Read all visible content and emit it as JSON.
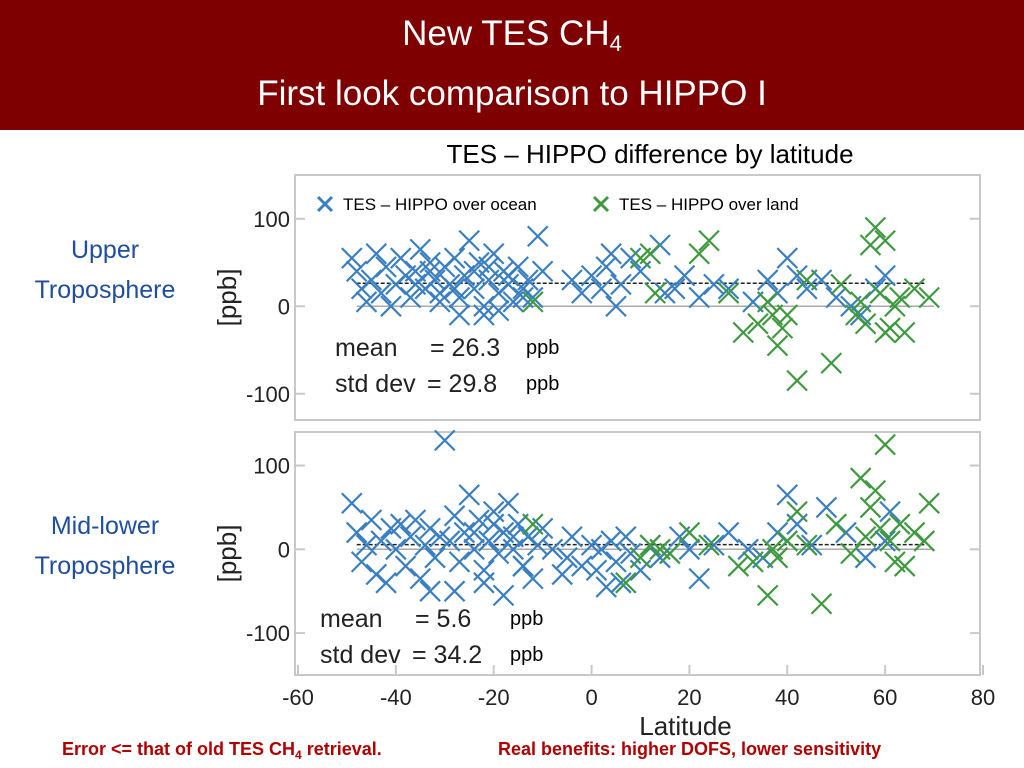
{
  "header": {
    "line1_prefix": "New TES CH",
    "line1_sub": "4",
    "line2": "First look comparison to HIPPO I"
  },
  "subtitle": "TES – HIPPO difference by latitude",
  "side_labels": {
    "upper_1": "Upper",
    "upper_2": "Troposphere",
    "lower_1": "Mid-lower",
    "lower_2": "Troposphere"
  },
  "footer": {
    "left_prefix": "Error <= that of old TES CH",
    "left_sub": "4",
    "left_suffix": " retrieval.",
    "right": "Real benefits: higher DOFS, lower sensitivity"
  },
  "colors": {
    "header_bg": "#7f0000",
    "ocean": "#3a7fc1",
    "land": "#3f9a3f",
    "side_label": "#1f4e9e",
    "footer_text": "#b00000"
  },
  "chart_data": [
    {
      "type": "scatter",
      "name": "upper",
      "ylabel": "[ppb]",
      "xlim": [
        -60,
        80
      ],
      "ylim": [
        -130,
        150
      ],
      "yticks": [
        100,
        0,
        -100
      ],
      "legend": "top",
      "legend_entries": [
        "TES – HIPPO over ocean",
        "TES – HIPPO over land"
      ],
      "mean_label": "mean",
      "mean_value": "= 26.3",
      "mean_unit": "ppb",
      "std_label": "std dev",
      "std_value": "= 29.8",
      "std_unit": "ppb",
      "mean_line": 26.3,
      "series": [
        {
          "key": "ocean",
          "points": [
            [
              -49,
              55
            ],
            [
              -48,
              40
            ],
            [
              -47,
              20
            ],
            [
              -46,
              5
            ],
            [
              -45,
              30
            ],
            [
              -44,
              60
            ],
            [
              -43,
              15
            ],
            [
              -42,
              45
            ],
            [
              -41,
              0
            ],
            [
              -40,
              25
            ],
            [
              -39,
              55
            ],
            [
              -38,
              35
            ],
            [
              -37,
              10
            ],
            [
              -36,
              40
            ],
            [
              -35,
              65
            ],
            [
              -34,
              20
            ],
            [
              -33,
              50
            ],
            [
              -32,
              30
            ],
            [
              -31,
              5
            ],
            [
              -30,
              45
            ],
            [
              -29,
              25
            ],
            [
              -28,
              55
            ],
            [
              -27,
              10
            ],
            [
              -26,
              35
            ],
            [
              -25,
              75
            ],
            [
              -24,
              20
            ],
            [
              -23,
              50
            ],
            [
              -22,
              0
            ],
            [
              -21,
              30
            ],
            [
              -20,
              60
            ],
            [
              -19,
              15
            ],
            [
              -18,
              40
            ],
            [
              -17,
              25
            ],
            [
              -16,
              5
            ],
            [
              -15,
              45
            ],
            [
              -14,
              20
            ],
            [
              -13,
              30
            ],
            [
              -12,
              10
            ],
            [
              -11,
              80
            ],
            [
              -10,
              40
            ],
            [
              -27,
              -10
            ],
            [
              -22,
              -10
            ],
            [
              -19,
              -5
            ],
            [
              -31,
              15
            ],
            [
              -36,
              25
            ],
            [
              -33,
              40
            ],
            [
              -28,
              20
            ],
            [
              -24,
              40
            ],
            [
              -21,
              45
            ],
            [
              -17,
              35
            ],
            [
              -14,
              10
            ],
            [
              -4,
              30
            ],
            [
              -2,
              15
            ],
            [
              0,
              35
            ],
            [
              2,
              20
            ],
            [
              3,
              45
            ],
            [
              4,
              60
            ],
            [
              5,
              0
            ],
            [
              6,
              25
            ],
            [
              8,
              55
            ],
            [
              10,
              40
            ],
            [
              14,
              70
            ],
            [
              15,
              15
            ],
            [
              17,
              20
            ],
            [
              19,
              35
            ],
            [
              22,
              10
            ],
            [
              25,
              25
            ],
            [
              28,
              20
            ],
            [
              33,
              5
            ],
            [
              36,
              30
            ],
            [
              38,
              15
            ],
            [
              40,
              55
            ],
            [
              42,
              35
            ],
            [
              44,
              20
            ],
            [
              47,
              30
            ],
            [
              50,
              10
            ],
            [
              53,
              0
            ],
            [
              55,
              -10
            ],
            [
              58,
              20
            ],
            [
              60,
              35
            ]
          ]
        },
        {
          "key": "land",
          "points": [
            [
              -12,
              5
            ],
            [
              10,
              55
            ],
            [
              12,
              60
            ],
            [
              13,
              15
            ],
            [
              22,
              60
            ],
            [
              24,
              75
            ],
            [
              28,
              15
            ],
            [
              31,
              -30
            ],
            [
              34,
              -20
            ],
            [
              36,
              5
            ],
            [
              37,
              -10
            ],
            [
              38,
              -45
            ],
            [
              39,
              -25
            ],
            [
              40,
              -10
            ],
            [
              42,
              -85
            ],
            [
              44,
              30
            ],
            [
              49,
              -65
            ],
            [
              51,
              25
            ],
            [
              54,
              -10
            ],
            [
              56,
              -20
            ],
            [
              57,
              70
            ],
            [
              58,
              90
            ],
            [
              59,
              15
            ],
            [
              60,
              75
            ],
            [
              61,
              -25
            ],
            [
              62,
              0
            ],
            [
              63,
              10
            ],
            [
              64,
              -30
            ],
            [
              66,
              20
            ],
            [
              69,
              10
            ],
            [
              55,
              5
            ],
            [
              60,
              -30
            ]
          ]
        }
      ]
    },
    {
      "type": "scatter",
      "name": "mid-lower",
      "ylabel": "[ppb]",
      "xlabel": "Latitude",
      "xlim": [
        -60,
        80
      ],
      "ylim": [
        -150,
        140
      ],
      "yticks": [
        100,
        0,
        -100
      ],
      "xticks": [
        -60,
        -40,
        -20,
        0,
        20,
        40,
        60,
        80
      ],
      "mean_label": "mean",
      "mean_value": "= 5.6",
      "mean_unit": "ppb",
      "std_label": "std dev",
      "std_value": "= 34.2",
      "std_unit": "ppb",
      "mean_line": 5.6,
      "series": [
        {
          "key": "ocean",
          "points": [
            [
              -49,
              55
            ],
            [
              -48,
              20
            ],
            [
              -47,
              -15
            ],
            [
              -46,
              5
            ],
            [
              -45,
              35
            ],
            [
              -44,
              -30
            ],
            [
              -43,
              10
            ],
            [
              -42,
              -40
            ],
            [
              -41,
              25
            ],
            [
              -40,
              0
            ],
            [
              -39,
              30
            ],
            [
              -38,
              -20
            ],
            [
              -37,
              15
            ],
            [
              -36,
              35
            ],
            [
              -35,
              -35
            ],
            [
              -34,
              5
            ],
            [
              -33,
              25
            ],
            [
              -32,
              -10
            ],
            [
              -31,
              15
            ],
            [
              -30,
              130
            ],
            [
              -29,
              10
            ],
            [
              -28,
              40
            ],
            [
              -27,
              -15
            ],
            [
              -26,
              20
            ],
            [
              -25,
              65
            ],
            [
              -24,
              0
            ],
            [
              -23,
              35
            ],
            [
              -22,
              -25
            ],
            [
              -21,
              10
            ],
            [
              -20,
              45
            ],
            [
              -19,
              -5
            ],
            [
              -18,
              20
            ],
            [
              -17,
              55
            ],
            [
              -16,
              0
            ],
            [
              -15,
              30
            ],
            [
              -14,
              -20
            ],
            [
              -13,
              15
            ],
            [
              -12,
              -35
            ],
            [
              -11,
              5
            ],
            [
              -10,
              25
            ],
            [
              -33,
              -50
            ],
            [
              -28,
              -50
            ],
            [
              -22,
              -40
            ],
            [
              -18,
              -55
            ],
            [
              -14,
              -20
            ],
            [
              -24,
              20
            ],
            [
              -20,
              30
            ],
            [
              -16,
              15
            ],
            [
              -8,
              0
            ],
            [
              -6,
              -30
            ],
            [
              -5,
              -10
            ],
            [
              -4,
              15
            ],
            [
              -2,
              -20
            ],
            [
              0,
              5
            ],
            [
              1,
              -25
            ],
            [
              2,
              0
            ],
            [
              3,
              -45
            ],
            [
              4,
              10
            ],
            [
              5,
              -15
            ],
            [
              6,
              -40
            ],
            [
              7,
              15
            ],
            [
              8,
              -5
            ],
            [
              10,
              -25
            ],
            [
              12,
              5
            ],
            [
              14,
              -10
            ],
            [
              16,
              -5
            ],
            [
              18,
              15
            ],
            [
              20,
              0
            ],
            [
              22,
              -35
            ],
            [
              25,
              5
            ],
            [
              28,
              20
            ],
            [
              32,
              0
            ],
            [
              35,
              -10
            ],
            [
              38,
              20
            ],
            [
              40,
              65
            ],
            [
              42,
              30
            ],
            [
              45,
              5
            ],
            [
              48,
              50
            ],
            [
              52,
              20
            ],
            [
              56,
              -10
            ],
            [
              60,
              10
            ],
            [
              61,
              45
            ]
          ]
        },
        {
          "key": "land",
          "points": [
            [
              -12,
              30
            ],
            [
              7,
              -40
            ],
            [
              10,
              -10
            ],
            [
              12,
              5
            ],
            [
              14,
              0
            ],
            [
              16,
              -5
            ],
            [
              20,
              20
            ],
            [
              24,
              5
            ],
            [
              30,
              -20
            ],
            [
              33,
              -15
            ],
            [
              36,
              -55
            ],
            [
              37,
              0
            ],
            [
              38,
              -10
            ],
            [
              40,
              10
            ],
            [
              42,
              45
            ],
            [
              44,
              5
            ],
            [
              47,
              -65
            ],
            [
              50,
              30
            ],
            [
              53,
              -5
            ],
            [
              55,
              85
            ],
            [
              57,
              50
            ],
            [
              58,
              70
            ],
            [
              59,
              25
            ],
            [
              60,
              125
            ],
            [
              61,
              10
            ],
            [
              62,
              -15
            ],
            [
              63,
              30
            ],
            [
              64,
              -20
            ],
            [
              66,
              20
            ],
            [
              68,
              10
            ],
            [
              69,
              55
            ],
            [
              56,
              15
            ]
          ]
        }
      ]
    }
  ]
}
